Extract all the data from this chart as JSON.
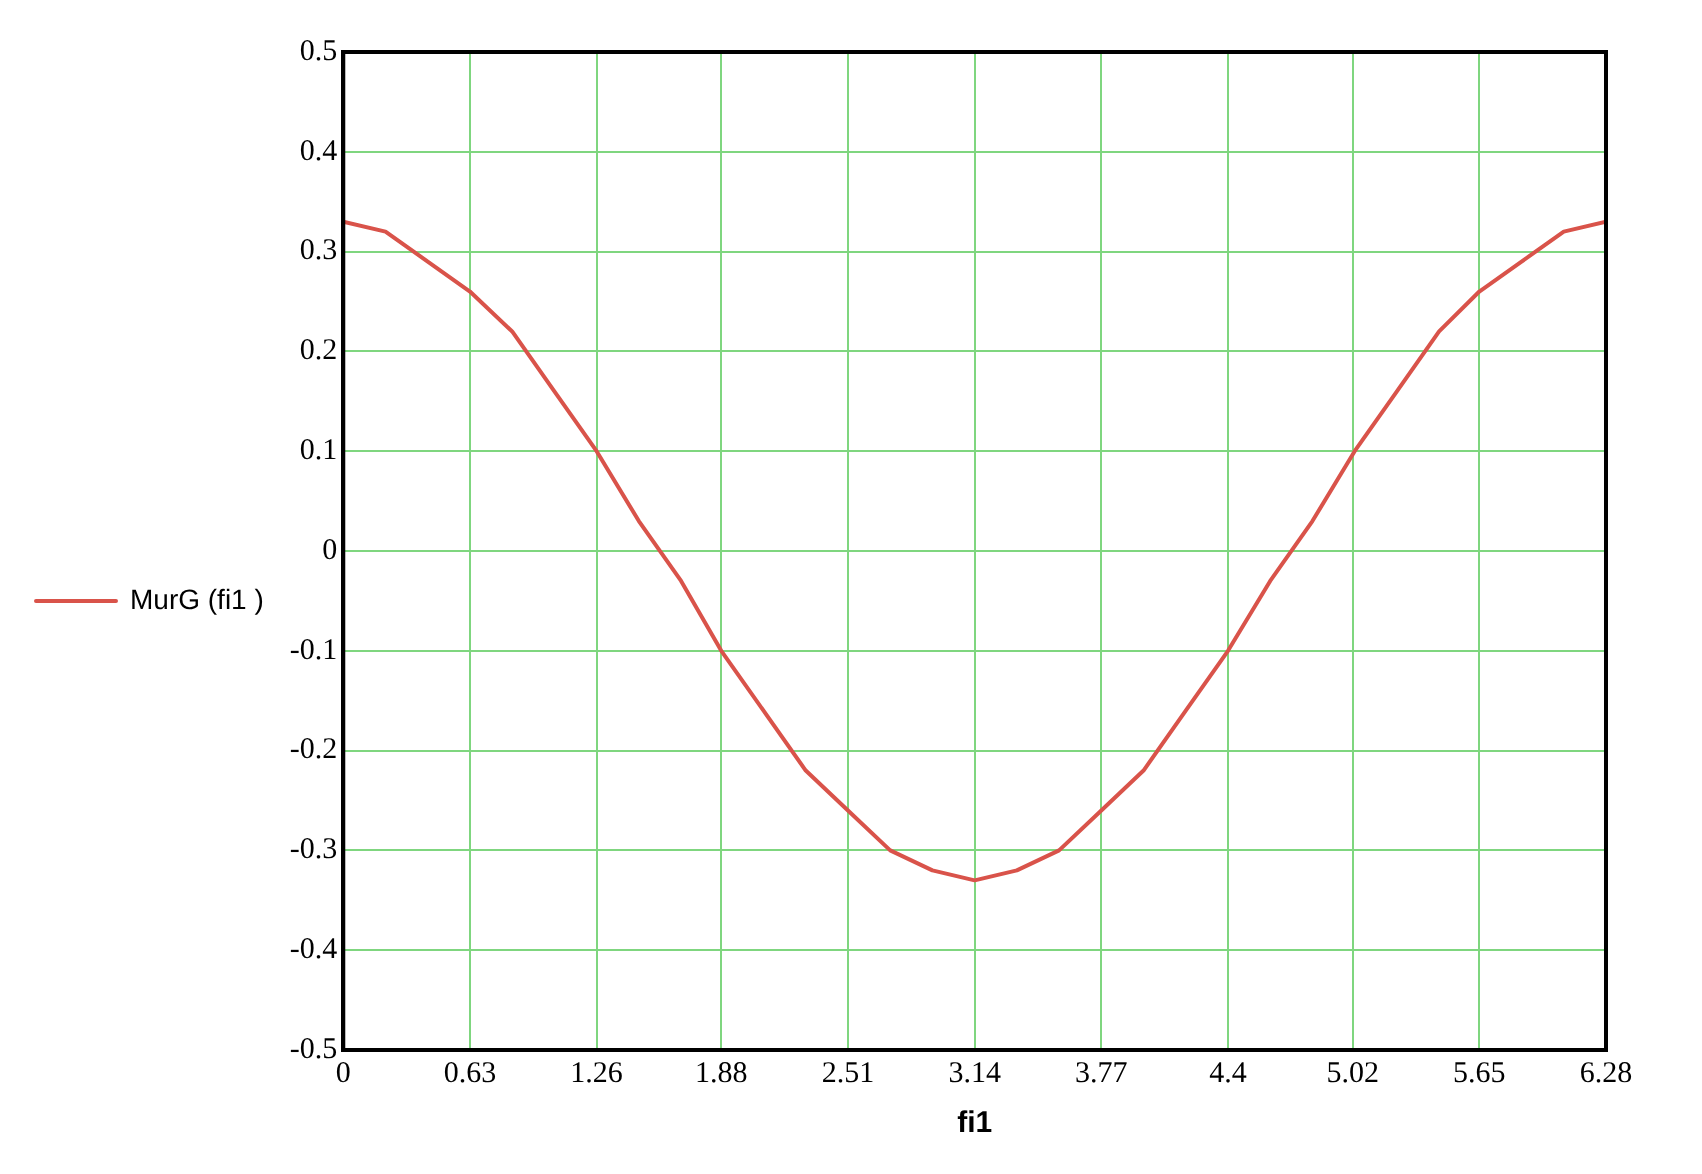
{
  "chart_data": {
    "type": "line",
    "xlabel": "fi1",
    "x": [
      0,
      0.21,
      0.42,
      0.63,
      0.84,
      1.05,
      1.26,
      1.47,
      1.68,
      1.88,
      2.09,
      2.3,
      2.51,
      2.72,
      2.93,
      3.14,
      3.35,
      3.56,
      3.77,
      3.98,
      4.19,
      4.4,
      4.61,
      4.82,
      5.03,
      5.24,
      5.45,
      5.65,
      5.86,
      6.07,
      6.28
    ],
    "series": [
      {
        "name": "MurG (fi1 )",
        "color": "#d9534a",
        "values": [
          0.33,
          0.32,
          0.29,
          0.26,
          0.22,
          0.16,
          0.1,
          0.03,
          -0.03,
          -0.1,
          -0.16,
          -0.22,
          -0.26,
          -0.3,
          -0.32,
          -0.33,
          -0.32,
          -0.3,
          -0.26,
          -0.22,
          -0.16,
          -0.1,
          -0.03,
          0.03,
          0.1,
          0.16,
          0.22,
          0.26,
          0.29,
          0.32,
          0.33
        ]
      }
    ],
    "xlim": [
      0,
      6.28
    ],
    "xticks": [
      0,
      0.63,
      1.26,
      1.88,
      2.51,
      3.14,
      3.77,
      4.4,
      5.02,
      5.65,
      6.28
    ],
    "ylim": [
      -0.5,
      0.5
    ],
    "yticks": [
      -0.5,
      -0.4,
      -0.3,
      -0.2,
      -0.1,
      0,
      0.1,
      0.2,
      0.3,
      0.4,
      0.5
    ],
    "grid": true,
    "legend": "left",
    "marker": "none",
    "line_style": "solid"
  }
}
